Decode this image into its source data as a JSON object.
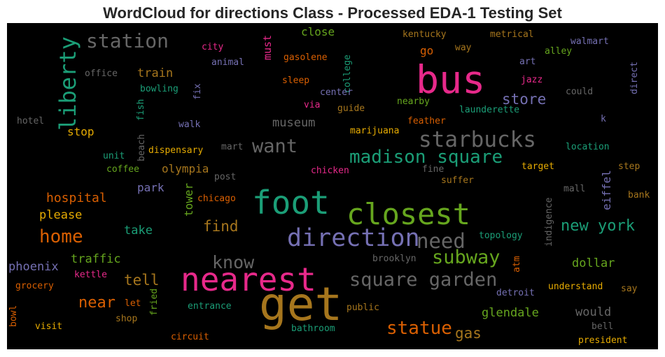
{
  "chart_data": {
    "type": "wordcloud",
    "title": "WordCloud for directions Class - Processed EDA-1 Testing Set",
    "background": "#000000",
    "colormap": "Dark2",
    "words": [
      {
        "text": "get",
        "color": "#a6761d"
      },
      {
        "text": "nearest",
        "color": "#e7298a"
      },
      {
        "text": "bus",
        "color": "#e7298a"
      },
      {
        "text": "foot",
        "color": "#1b9e77"
      },
      {
        "text": "closest",
        "color": "#66a61e"
      },
      {
        "text": "direction",
        "color": "#7570b3"
      },
      {
        "text": "need",
        "color": "#666666"
      },
      {
        "text": "liberty",
        "color": "#1b9e77"
      },
      {
        "text": "station",
        "color": "#666666"
      },
      {
        "text": "starbucks",
        "color": "#666666"
      },
      {
        "text": "madison square",
        "color": "#1b9e77"
      },
      {
        "text": "want",
        "color": "#666666"
      },
      {
        "text": "square garden",
        "color": "#666666"
      },
      {
        "text": "subway",
        "color": "#66a61e"
      },
      {
        "text": "statue",
        "color": "#d95f02"
      },
      {
        "text": "know",
        "color": "#666666"
      },
      {
        "text": "home",
        "color": "#d95f02"
      },
      {
        "text": "new york",
        "color": "#1b9e77"
      },
      {
        "text": "store",
        "color": "#7570b3"
      },
      {
        "text": "near",
        "color": "#d95f02"
      },
      {
        "text": "find",
        "color": "#a6761d"
      },
      {
        "text": "tell",
        "color": "#a6761d"
      },
      {
        "text": "gas",
        "color": "#a6761d"
      },
      {
        "text": "hospital",
        "color": "#d95f02"
      },
      {
        "text": "museum",
        "color": "#666666"
      },
      {
        "text": "olympia",
        "color": "#a6761d"
      },
      {
        "text": "traffic",
        "color": "#66a61e"
      },
      {
        "text": "take",
        "color": "#1b9e77"
      },
      {
        "text": "please",
        "color": "#e6ab02"
      },
      {
        "text": "phoenix",
        "color": "#7570b3"
      },
      {
        "text": "glendale",
        "color": "#66a61e"
      },
      {
        "text": "dollar",
        "color": "#66a61e"
      },
      {
        "text": "would",
        "color": "#666666"
      },
      {
        "text": "train",
        "color": "#a6761d"
      },
      {
        "text": "stop",
        "color": "#e6ab02"
      },
      {
        "text": "park",
        "color": "#7570b3"
      },
      {
        "text": "tower",
        "color": "#66a61e"
      },
      {
        "text": "eiffel",
        "color": "#7570b3"
      },
      {
        "text": "close",
        "color": "#66a61e"
      },
      {
        "text": "go",
        "color": "#d95f02"
      },
      {
        "text": "must",
        "color": "#e7298a"
      },
      {
        "text": "kentucky",
        "color": "#a6761d"
      },
      {
        "text": "metrical",
        "color": "#a6761d"
      },
      {
        "text": "city",
        "color": "#e7298a"
      },
      {
        "text": "gasolene",
        "color": "#d95f02"
      },
      {
        "text": "way",
        "color": "#a6761d"
      },
      {
        "text": "walmart",
        "color": "#7570b3"
      },
      {
        "text": "alley",
        "color": "#66a61e"
      },
      {
        "text": "animal",
        "color": "#7570b3"
      },
      {
        "text": "college",
        "color": "#1b9e77"
      },
      {
        "text": "art",
        "color": "#7570b3"
      },
      {
        "text": "office",
        "color": "#666666"
      },
      {
        "text": "sleep",
        "color": "#d95f02"
      },
      {
        "text": "jazz",
        "color": "#e7298a"
      },
      {
        "text": "direct",
        "color": "#7570b3"
      },
      {
        "text": "bowling",
        "color": "#1b9e77"
      },
      {
        "text": "fix",
        "color": "#7570b3"
      },
      {
        "text": "center",
        "color": "#7570b3"
      },
      {
        "text": "could",
        "color": "#666666"
      },
      {
        "text": "fish",
        "color": "#1b9e77"
      },
      {
        "text": "via",
        "color": "#e7298a"
      },
      {
        "text": "guide",
        "color": "#a6761d"
      },
      {
        "text": "nearby",
        "color": "#66a61e"
      },
      {
        "text": "launderette",
        "color": "#1b9e77"
      },
      {
        "text": "hotel",
        "color": "#666666"
      },
      {
        "text": "walk",
        "color": "#7570b3"
      },
      {
        "text": "feather",
        "color": "#d95f02"
      },
      {
        "text": "k",
        "color": "#7570b3"
      },
      {
        "text": "marijuana",
        "color": "#e6ab02"
      },
      {
        "text": "beach",
        "color": "#666666"
      },
      {
        "text": "unit",
        "color": "#1b9e77"
      },
      {
        "text": "dispensary",
        "color": "#e6ab02"
      },
      {
        "text": "mart",
        "color": "#666666"
      },
      {
        "text": "location",
        "color": "#1b9e77"
      },
      {
        "text": "coffee",
        "color": "#66a61e"
      },
      {
        "text": "chicken",
        "color": "#e7298a"
      },
      {
        "text": "fine",
        "color": "#666666"
      },
      {
        "text": "target",
        "color": "#e6ab02"
      },
      {
        "text": "step",
        "color": "#a6761d"
      },
      {
        "text": "post",
        "color": "#666666"
      },
      {
        "text": "suffer",
        "color": "#a6761d"
      },
      {
        "text": "mall",
        "color": "#666666"
      },
      {
        "text": "chicago",
        "color": "#d95f02"
      },
      {
        "text": "bank",
        "color": "#a6761d"
      },
      {
        "text": "indigence",
        "color": "#666666"
      },
      {
        "text": "topology",
        "color": "#1b9e77"
      },
      {
        "text": "kettle",
        "color": "#e7298a"
      },
      {
        "text": "brooklyn",
        "color": "#666666"
      },
      {
        "text": "atm",
        "color": "#d95f02"
      },
      {
        "text": "grocery",
        "color": "#d95f02"
      },
      {
        "text": "detroit",
        "color": "#7570b3"
      },
      {
        "text": "understand",
        "color": "#e6ab02"
      },
      {
        "text": "say",
        "color": "#a6761d"
      },
      {
        "text": "let",
        "color": "#d95f02"
      },
      {
        "text": "fried",
        "color": "#66a61e"
      },
      {
        "text": "entrance",
        "color": "#1b9e77"
      },
      {
        "text": "public",
        "color": "#a6761d"
      },
      {
        "text": "bowl",
        "color": "#d95f02"
      },
      {
        "text": "shop",
        "color": "#a6761d"
      },
      {
        "text": "visit",
        "color": "#e6ab02"
      },
      {
        "text": "bathroom",
        "color": "#1b9e77"
      },
      {
        "text": "bell",
        "color": "#666666"
      },
      {
        "text": "circuit",
        "color": "#d95f02"
      },
      {
        "text": "president",
        "color": "#e6ab02"
      }
    ]
  }
}
